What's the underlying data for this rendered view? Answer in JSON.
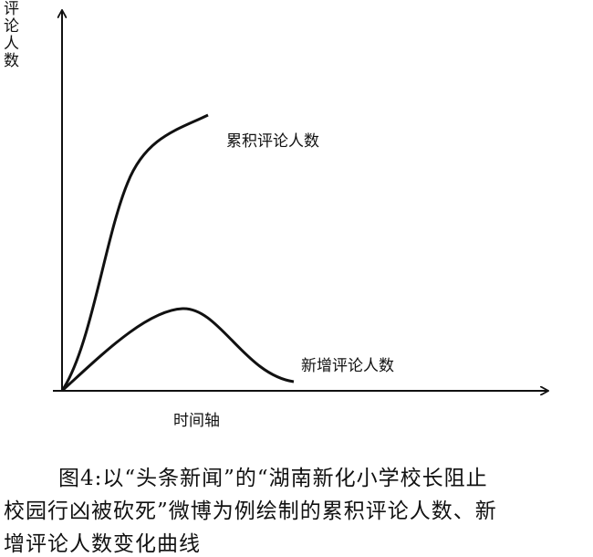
{
  "diagram": {
    "y_axis_label": "评论人数",
    "x_axis_label": "时间轴",
    "curves": [
      {
        "label": "累积评论人数"
      },
      {
        "label": "新增评论人数"
      }
    ]
  },
  "caption": {
    "lines": [
      "图4:以“头条新闻”的“湖南新化小学校长阻止",
      "校园行凶被砍死”微博为例绘制的累积评论人数、新",
      "增评论人数变化曲线"
    ]
  }
}
